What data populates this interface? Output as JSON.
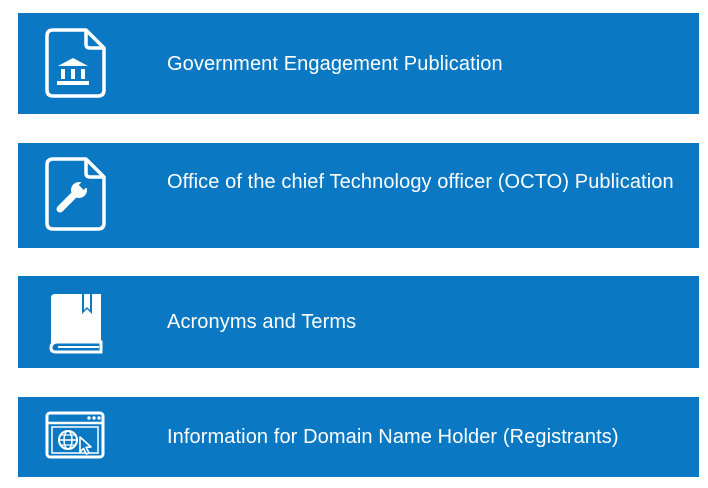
{
  "colors": {
    "card_background": "#0a78c2",
    "text": "#ffffff"
  },
  "cards": [
    {
      "label": "Government Engagement Publication",
      "icon": "document-government-building-icon"
    },
    {
      "label": "Office of the chief Technology officer (OCTO) Publication",
      "icon": "document-wrench-icon"
    },
    {
      "label": "Acronyms and Terms",
      "icon": "book-icon"
    },
    {
      "label": "Information for Domain Name Holder (Registrants)",
      "icon": "browser-globe-cursor-icon"
    }
  ]
}
